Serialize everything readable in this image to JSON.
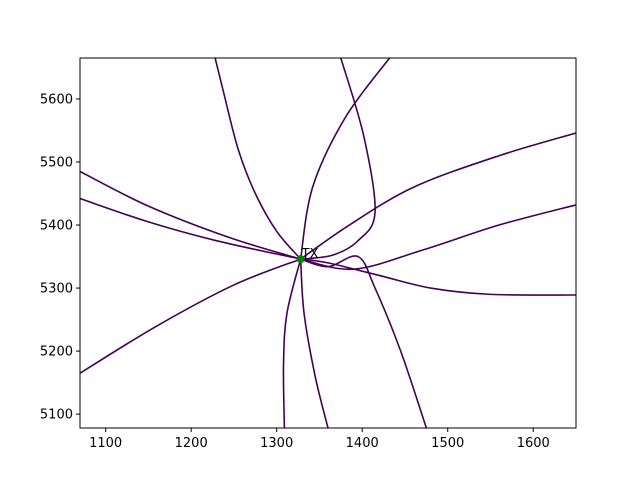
{
  "chart_data": {
    "type": "line",
    "title": "",
    "xlabel": "",
    "ylabel": "",
    "xlim": [
      1070,
      1650
    ],
    "ylim": [
      5078,
      5665
    ],
    "xticks": [
      1100,
      1200,
      1300,
      1400,
      1500,
      1600
    ],
    "yticks": [
      5100,
      5200,
      5300,
      5400,
      5500,
      5600
    ],
    "grid": false,
    "legend": "none",
    "line_color": "#440154",
    "marker_color": "#008000",
    "annotations": [
      {
        "text": "TX",
        "x": 1328,
        "y": 5346
      }
    ],
    "series": [
      {
        "points": [
          [
            1328,
            5346
          ],
          [
            1300,
            5390
          ],
          [
            1275,
            5450
          ],
          [
            1255,
            5520
          ],
          [
            1238,
            5610
          ],
          [
            1228,
            5665
          ]
        ]
      },
      {
        "points": [
          [
            1328,
            5346
          ],
          [
            1360,
            5340
          ],
          [
            1420,
            5320
          ],
          [
            1480,
            5300
          ],
          [
            1550,
            5290
          ],
          [
            1650,
            5289
          ]
        ]
      },
      {
        "points": [
          [
            1328,
            5346
          ],
          [
            1365,
            5352
          ],
          [
            1395,
            5375
          ],
          [
            1415,
            5420
          ],
          [
            1402,
            5540
          ],
          [
            1375,
            5665
          ]
        ]
      },
      {
        "points": [
          [
            1328,
            5346
          ],
          [
            1360,
            5334
          ],
          [
            1395,
            5350
          ],
          [
            1415,
            5300
          ],
          [
            1445,
            5200
          ],
          [
            1475,
            5078
          ]
        ]
      },
      {
        "points": [
          [
            1328,
            5346
          ],
          [
            1342,
            5460
          ],
          [
            1380,
            5570
          ],
          [
            1432,
            5665
          ]
        ]
      },
      {
        "points": [
          [
            1328,
            5346
          ],
          [
            1390,
            5330
          ],
          [
            1470,
            5360
          ],
          [
            1560,
            5400
          ],
          [
            1650,
            5432
          ]
        ]
      },
      {
        "points": [
          [
            1328,
            5346
          ],
          [
            1385,
            5400
          ],
          [
            1460,
            5460
          ],
          [
            1560,
            5510
          ],
          [
            1650,
            5546
          ]
        ]
      },
      {
        "points": [
          [
            1328,
            5346
          ],
          [
            1245,
            5380
          ],
          [
            1150,
            5430
          ],
          [
            1070,
            5485
          ]
        ]
      },
      {
        "points": [
          [
            1328,
            5346
          ],
          [
            1230,
            5375
          ],
          [
            1150,
            5405
          ],
          [
            1070,
            5442
          ]
        ]
      },
      {
        "points": [
          [
            1328,
            5346
          ],
          [
            1250,
            5305
          ],
          [
            1160,
            5240
          ],
          [
            1070,
            5165
          ]
        ]
      },
      {
        "points": [
          [
            1328,
            5346
          ],
          [
            1312,
            5260
          ],
          [
            1308,
            5180
          ],
          [
            1309,
            5078
          ]
        ]
      },
      {
        "points": [
          [
            1328,
            5346
          ],
          [
            1332,
            5260
          ],
          [
            1345,
            5160
          ],
          [
            1360,
            5078
          ]
        ]
      }
    ]
  }
}
